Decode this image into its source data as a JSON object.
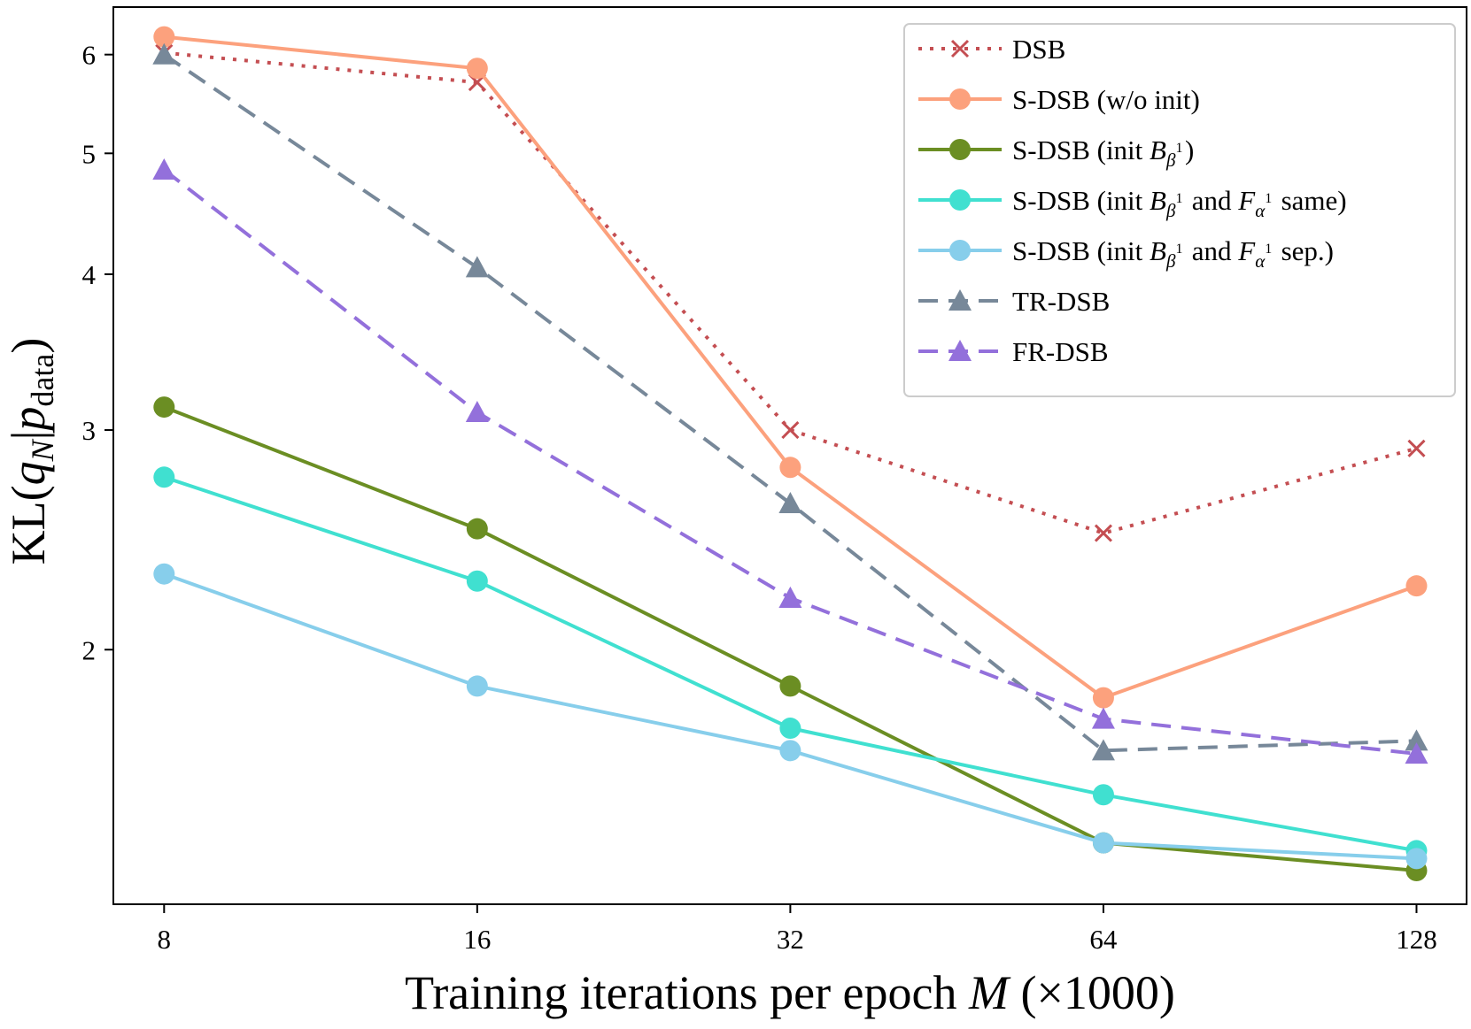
{
  "chart_data": {
    "type": "line",
    "title": "",
    "xlabel": "Training iterations per epoch M (×1000)",
    "xlabel_parts": {
      "prefix": "Training iterations per epoch ",
      "var": "M",
      "suffix": " (×1000)"
    },
    "ylabel": "KL(q_N|p_data)",
    "x_scale": "log2",
    "y_scale": "log",
    "x": [
      8,
      16,
      32,
      64,
      128
    ],
    "x_tick_labels": [
      "8",
      "16",
      "32",
      "64",
      "128"
    ],
    "xlim": [
      7.15,
      143
    ],
    "ylim": [
      1.25,
      6.55
    ],
    "y_ticks": [
      2,
      3,
      4,
      5,
      6
    ],
    "y_tick_labels": [
      "2",
      "3",
      "4",
      "5",
      "6"
    ],
    "grid": false,
    "legend_position": "top-right",
    "series": [
      {
        "name": "DSB",
        "legend_label": "DSB",
        "values": [
          6.02,
          5.7,
          3.0,
          2.48,
          2.9
        ],
        "color": "#c44e52",
        "line_style": "dotted",
        "marker": "x"
      },
      {
        "name": "S-DSB (w/o init)",
        "legend_label": "S-DSB (w/o init)",
        "values": [
          6.2,
          5.85,
          2.8,
          1.83,
          2.25
        ],
        "color": "#fca17d",
        "line_style": "solid",
        "marker": "circle"
      },
      {
        "name": "S-DSB (init B_β¹)",
        "legend_label": "S-DSB (init B_β¹)",
        "values": [
          3.13,
          2.5,
          1.87,
          1.4,
          1.33
        ],
        "color": "#6b8e23",
        "line_style": "solid",
        "marker": "circle"
      },
      {
        "name": "S-DSB (init B_β¹ and F_α¹ same)",
        "legend_label": "S-DSB (init B_β¹ and F_α¹ same)",
        "values": [
          2.75,
          2.27,
          1.73,
          1.53,
          1.38
        ],
        "color": "#40e0d0",
        "line_style": "solid",
        "marker": "circle"
      },
      {
        "name": "S-DSB (init B_β¹ and F_α¹ sep.)",
        "legend_label": "S-DSB (init B_β¹ and F_α¹ sep.)",
        "values": [
          2.3,
          1.87,
          1.66,
          1.4,
          1.36
        ],
        "color": "#87ceeb",
        "line_style": "solid",
        "marker": "circle"
      },
      {
        "name": "TR-DSB",
        "legend_label": "TR-DSB",
        "values": [
          6.0,
          4.05,
          2.62,
          1.66,
          1.69
        ],
        "color": "#778899",
        "line_style": "dashed",
        "marker": "triangle"
      },
      {
        "name": "FR-DSB",
        "legend_label": "FR-DSB",
        "values": [
          4.85,
          3.1,
          2.2,
          1.76,
          1.65
        ],
        "color": "#9370db",
        "line_style": "dashed",
        "marker": "triangle"
      }
    ]
  }
}
